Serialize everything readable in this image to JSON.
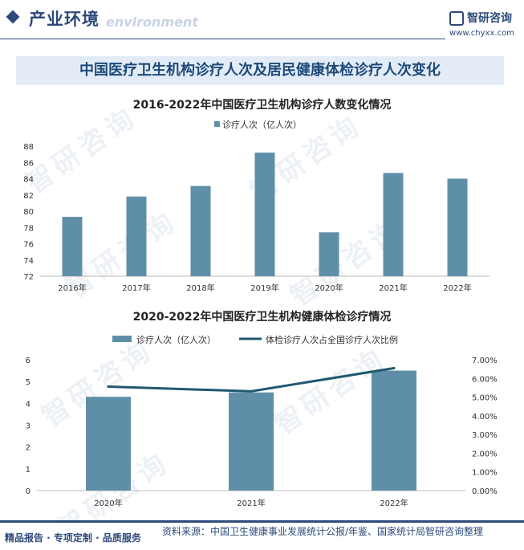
{
  "header": {
    "section_title": "产业环境",
    "section_subtitle": "environment",
    "logo_text": "智研咨询",
    "logo_url": "www.chyxx.com",
    "brand_color": "#2e4a7a"
  },
  "banner_title": "中国医疗卫生机构诊疗人次及居民健康体检诊疗人次变化",
  "watermark_text": "智研咨询",
  "chart_data": [
    {
      "type": "bar",
      "title": "2016-2022年中国医疗卫生机构诊疗人数变化情况",
      "categories": [
        "2016年",
        "2017年",
        "2018年",
        "2019年",
        "2020年",
        "2021年",
        "2022年"
      ],
      "series": [
        {
          "name": "诊疗人次（亿人次）",
          "values": [
            79.3,
            81.8,
            83.1,
            87.2,
            77.4,
            84.7,
            84.0
          ],
          "color": "#5f8fa8"
        }
      ],
      "ylim": [
        72,
        88
      ],
      "yticks": [
        "72",
        "74",
        "76",
        "78",
        "80",
        "82",
        "84",
        "86",
        "88"
      ],
      "legend": "top-center",
      "grid": false
    },
    {
      "type": "bar",
      "title": "2020-2022年中国医疗卫生机构健康体检诊疗情况",
      "categories": [
        "2020年",
        "2021年",
        "2022年"
      ],
      "series": [
        {
          "name": "诊疗人次（亿人次）",
          "type": "bar",
          "axis": "left",
          "values": [
            4.3,
            4.5,
            5.5
          ],
          "color": "#5f8fa8"
        },
        {
          "name": "体检诊疗人次占全国诊疗人次比例",
          "type": "line",
          "axis": "right",
          "values": [
            5.56,
            5.31,
            6.55
          ],
          "color": "#1f5a6e"
        }
      ],
      "ylim": [
        0,
        6
      ],
      "yticks": [
        "0",
        "1",
        "2",
        "3",
        "4",
        "5",
        "6"
      ],
      "y2lim": [
        0,
        7
      ],
      "y2ticks": [
        "0.00%",
        "1.00%",
        "2.00%",
        "3.00%",
        "4.00%",
        "5.00%",
        "6.00%",
        "7.00%"
      ],
      "legend": "top-center",
      "grid": false
    }
  ],
  "footer": {
    "left_text": "精品报告 · 专项定制 · 品质服务",
    "source_text": "资料来源：中国卫生健康事业发展统计公报/年鉴、国家统计局智研咨询整理"
  }
}
